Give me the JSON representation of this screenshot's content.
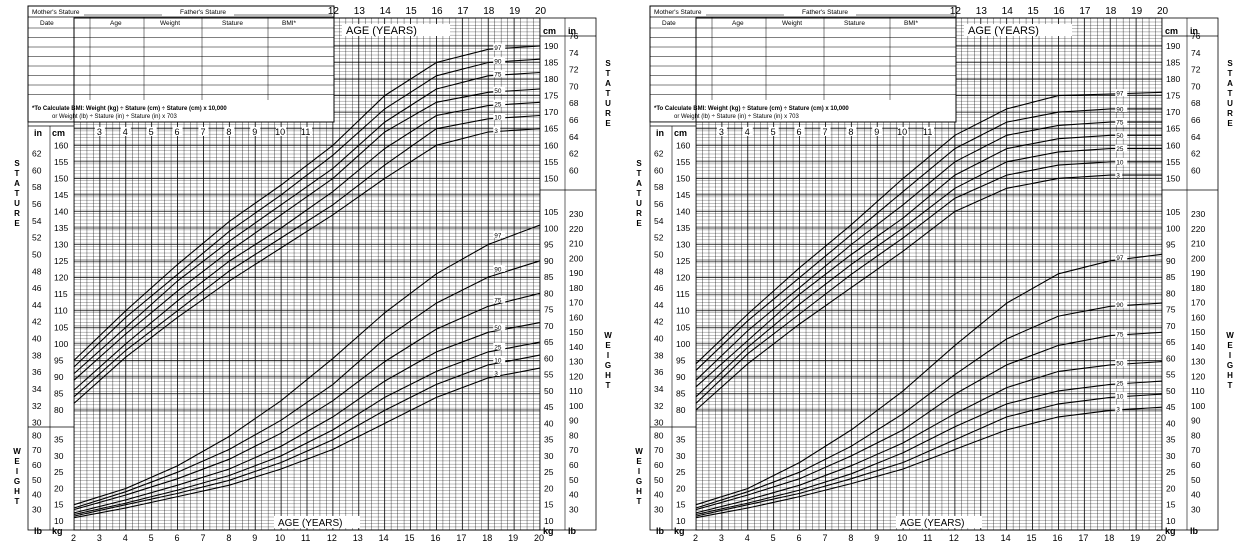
{
  "charts": [
    {
      "id": "boys",
      "header": {
        "mothers_stature": "Mother's Stature",
        "fathers_stature": "Father's Stature",
        "columns": [
          "Date",
          "Age",
          "Weight",
          "Stature",
          "BMI*"
        ],
        "bmi_note_1": "*To Calculate BMI: Weight (kg) ÷ Stature (cm) ÷ Stature (cm) x 10,000",
        "bmi_note_2": "or Weight (lb) ÷ Stature (in) ÷ Stature (in) x 703"
      },
      "labels": {
        "age_top": "AGE (YEARS)",
        "age_bottom": "AGE (YEARS)",
        "stature_vertical": "STATURE",
        "weight_vertical": "WEIGHT",
        "unit_in": "in",
        "unit_cm": "cm",
        "unit_lb": "lb",
        "unit_kg": "kg"
      }
    },
    {
      "id": "girls",
      "header": {
        "mothers_stature": "Mother's Stature",
        "fathers_stature": "Father's Stature",
        "columns": [
          "Date",
          "Age",
          "Weight",
          "Stature",
          "BMI*"
        ],
        "bmi_note_1": "*To Calculate BMI: Weight (kg) ÷ Stature (cm) ÷ Stature (cm) x 10,000",
        "bmi_note_2": "or Weight (lb) ÷ Stature (in) ÷ Stature (in) x 703"
      },
      "labels": {
        "age_top": "AGE (YEARS)",
        "age_bottom": "AGE (YEARS)",
        "stature_vertical": "STATURE",
        "weight_vertical": "WEIGHT",
        "unit_in": "in",
        "unit_cm": "cm",
        "unit_lb": "lb",
        "unit_kg": "kg"
      }
    }
  ],
  "chart_data": [
    {
      "type": "line",
      "chart": "boys",
      "xlabel": "AGE (YEARS)",
      "xlim": [
        2,
        20
      ],
      "x_ticks_top": [
        12,
        13,
        14,
        15,
        16,
        17,
        18,
        19,
        20
      ],
      "x_ticks_inner": [
        3,
        4,
        5,
        6,
        7,
        8,
        9,
        10,
        11
      ],
      "x_ticks_bottom": [
        2,
        3,
        4,
        5,
        6,
        7,
        8,
        9,
        10,
        11,
        12,
        13,
        14,
        15,
        16,
        17,
        18,
        19,
        20
      ],
      "stature_cm_left_ticks": [
        80,
        85,
        90,
        95,
        100,
        105,
        110,
        115,
        120,
        125,
        130,
        135,
        140,
        145,
        150,
        155,
        160
      ],
      "stature_in_left_ticks": [
        30,
        32,
        34,
        36,
        38,
        40,
        42,
        44,
        46,
        48,
        50,
        52,
        54,
        56,
        58,
        60,
        62
      ],
      "stature_cm_right_ticks": [
        150,
        155,
        160,
        165,
        170,
        175,
        180,
        185,
        190
      ],
      "stature_in_right_ticks": [
        60,
        62,
        64,
        66,
        68,
        70,
        72,
        74,
        76
      ],
      "weight_kg_left_ticks": [
        10,
        15,
        20,
        25,
        30,
        35
      ],
      "weight_lb_left_ticks": [
        30,
        40,
        50,
        60,
        70,
        80
      ],
      "weight_kg_right_ticks": [
        10,
        15,
        20,
        25,
        30,
        35,
        40,
        45,
        50,
        55,
        60,
        65,
        70,
        75,
        80,
        85,
        90,
        95,
        100,
        105
      ],
      "weight_lb_right_ticks": [
        30,
        40,
        50,
        60,
        70,
        80,
        90,
        100,
        110,
        120,
        130,
        140,
        150,
        160,
        170,
        180,
        190,
        200,
        210,
        220,
        230
      ],
      "stature_series": [
        {
          "name": "97",
          "x": [
            2,
            4,
            6,
            8,
            10,
            12,
            14,
            16,
            18,
            20
          ],
          "y": [
            95,
            110,
            124,
            137,
            148,
            160,
            175,
            185,
            189,
            190
          ]
        },
        {
          "name": "90",
          "x": [
            2,
            4,
            6,
            8,
            10,
            12,
            14,
            16,
            18,
            20
          ],
          "y": [
            93,
            108,
            121,
            134,
            145,
            157,
            171,
            181,
            185,
            186
          ]
        },
        {
          "name": "75",
          "x": [
            2,
            4,
            6,
            8,
            10,
            12,
            14,
            16,
            18,
            20
          ],
          "y": [
            91,
            105,
            119,
            131,
            142,
            153,
            167,
            177,
            181,
            182
          ]
        },
        {
          "name": "50",
          "x": [
            2,
            4,
            6,
            8,
            10,
            12,
            14,
            16,
            18,
            20
          ],
          "y": [
            89,
            103,
            116,
            128,
            139,
            150,
            164,
            173,
            176,
            177
          ]
        },
        {
          "name": "25",
          "x": [
            2,
            4,
            6,
            8,
            10,
            12,
            14,
            16,
            18,
            20
          ],
          "y": [
            86,
            100,
            113,
            125,
            135,
            146,
            159,
            169,
            172,
            173
          ]
        },
        {
          "name": "10",
          "x": [
            2,
            4,
            6,
            8,
            10,
            12,
            14,
            16,
            18,
            20
          ],
          "y": [
            84,
            98,
            110,
            122,
            132,
            142,
            154,
            165,
            168,
            169
          ]
        },
        {
          "name": "3",
          "x": [
            2,
            4,
            6,
            8,
            10,
            12,
            14,
            16,
            18,
            20
          ],
          "y": [
            82,
            96,
            108,
            119,
            129,
            139,
            150,
            160,
            164,
            165
          ]
        }
      ],
      "weight_series": [
        {
          "name": "97",
          "x": [
            2,
            4,
            6,
            8,
            10,
            12,
            14,
            16,
            18,
            20
          ],
          "y": [
            15,
            20,
            27,
            36,
            47,
            60,
            74,
            86,
            95,
            101
          ]
        },
        {
          "name": "90",
          "x": [
            2,
            4,
            6,
            8,
            10,
            12,
            14,
            16,
            18,
            20
          ],
          "y": [
            14,
            19,
            25,
            32,
            41,
            52,
            66,
            77,
            85,
            90
          ]
        },
        {
          "name": "75",
          "x": [
            2,
            4,
            6,
            8,
            10,
            12,
            14,
            16,
            18,
            20
          ],
          "y": [
            13.5,
            18,
            23,
            29,
            37,
            47,
            59,
            69,
            76,
            80
          ]
        },
        {
          "name": "50",
          "x": [
            2,
            4,
            6,
            8,
            10,
            12,
            14,
            16,
            18,
            20
          ],
          "y": [
            12.5,
            16.5,
            21,
            26,
            33,
            42,
            53,
            62,
            68,
            71
          ]
        },
        {
          "name": "25",
          "x": [
            2,
            4,
            6,
            8,
            10,
            12,
            14,
            16,
            18,
            20
          ],
          "y": [
            12,
            15.5,
            19.5,
            24,
            30,
            38,
            48,
            56,
            62,
            65
          ]
        },
        {
          "name": "10",
          "x": [
            2,
            4,
            6,
            8,
            10,
            12,
            14,
            16,
            18,
            20
          ],
          "y": [
            11.5,
            15,
            18.5,
            22.5,
            28,
            35,
            44,
            52,
            58,
            61
          ]
        },
        {
          "name": "3",
          "x": [
            2,
            4,
            6,
            8,
            10,
            12,
            14,
            16,
            18,
            20
          ],
          "y": [
            11,
            14,
            17.5,
            21,
            26,
            32,
            40,
            48,
            54,
            57
          ]
        }
      ]
    },
    {
      "type": "line",
      "chart": "girls",
      "xlabel": "AGE (YEARS)",
      "xlim": [
        2,
        20
      ],
      "x_ticks_top": [
        12,
        13,
        14,
        15,
        16,
        17,
        18,
        19,
        20
      ],
      "x_ticks_inner": [
        3,
        4,
        5,
        6,
        7,
        8,
        9,
        10,
        11
      ],
      "x_ticks_bottom": [
        2,
        3,
        4,
        5,
        6,
        7,
        8,
        9,
        10,
        11,
        12,
        13,
        14,
        15,
        16,
        17,
        18,
        19,
        20
      ],
      "stature_cm_left_ticks": [
        80,
        85,
        90,
        95,
        100,
        105,
        110,
        115,
        120,
        125,
        130,
        135,
        140,
        145,
        150,
        155,
        160
      ],
      "stature_in_left_ticks": [
        30,
        32,
        34,
        36,
        38,
        40,
        42,
        44,
        46,
        48,
        50,
        52,
        54,
        56,
        58,
        60,
        62
      ],
      "stature_cm_right_ticks": [
        150,
        155,
        160,
        165,
        170,
        175,
        180,
        185,
        190
      ],
      "stature_in_right_ticks": [
        60,
        62,
        64,
        66,
        68,
        70,
        72,
        74,
        76
      ],
      "weight_kg_left_ticks": [
        10,
        15,
        20,
        25,
        30,
        35
      ],
      "weight_lb_left_ticks": [
        30,
        40,
        50,
        60,
        70,
        80
      ],
      "weight_kg_right_ticks": [
        10,
        15,
        20,
        25,
        30,
        35,
        40,
        45,
        50,
        55,
        60,
        65,
        70,
        75,
        80,
        85,
        90,
        95,
        100,
        105
      ],
      "weight_lb_right_ticks": [
        30,
        40,
        50,
        60,
        70,
        80,
        90,
        100,
        110,
        120,
        130,
        140,
        150,
        160,
        170,
        180,
        190,
        200,
        210,
        220,
        230
      ],
      "stature_series": [
        {
          "name": "97",
          "x": [
            2,
            4,
            6,
            8,
            10,
            12,
            14,
            16,
            18,
            20
          ],
          "y": [
            94,
            109,
            123,
            136,
            150,
            163,
            171,
            175,
            175.5,
            176
          ]
        },
        {
          "name": "90",
          "x": [
            2,
            4,
            6,
            8,
            10,
            12,
            14,
            16,
            18,
            20
          ],
          "y": [
            92,
            107,
            120,
            133,
            146,
            159,
            167,
            170,
            171,
            171
          ]
        },
        {
          "name": "75",
          "x": [
            2,
            4,
            6,
            8,
            10,
            12,
            14,
            16,
            18,
            20
          ],
          "y": [
            89,
            104,
            117,
            130,
            142,
            155,
            163,
            166,
            167,
            167
          ]
        },
        {
          "name": "50",
          "x": [
            2,
            4,
            6,
            8,
            10,
            12,
            14,
            16,
            18,
            20
          ],
          "y": [
            87,
            101,
            115,
            127,
            138,
            151,
            159,
            162,
            163,
            163
          ]
        },
        {
          "name": "25",
          "x": [
            2,
            4,
            6,
            8,
            10,
            12,
            14,
            16,
            18,
            20
          ],
          "y": [
            84,
            99,
            112,
            124,
            135,
            147,
            155,
            158,
            159,
            159
          ]
        },
        {
          "name": "10",
          "x": [
            2,
            4,
            6,
            8,
            10,
            12,
            14,
            16,
            18,
            20
          ],
          "y": [
            82,
            97,
            109,
            121,
            132,
            144,
            151,
            154,
            155,
            155
          ]
        },
        {
          "name": "3",
          "x": [
            2,
            4,
            6,
            8,
            10,
            12,
            14,
            16,
            18,
            20
          ],
          "y": [
            80,
            94,
            106,
            117,
            128,
            140,
            147,
            150,
            151,
            151
          ]
        }
      ],
      "weight_series": [
        {
          "name": "97",
          "x": [
            2,
            4,
            6,
            8,
            10,
            12,
            14,
            16,
            18,
            20
          ],
          "y": [
            15,
            20,
            28,
            38,
            50,
            64,
            77,
            86,
            90,
            92
          ]
        },
        {
          "name": "90",
          "x": [
            2,
            4,
            6,
            8,
            10,
            12,
            14,
            16,
            18,
            20
          ],
          "y": [
            14,
            19,
            25,
            33,
            43,
            55,
            66,
            73,
            76,
            77
          ]
        },
        {
          "name": "75",
          "x": [
            2,
            4,
            6,
            8,
            10,
            12,
            14,
            16,
            18,
            20
          ],
          "y": [
            13.5,
            18,
            23,
            30,
            38,
            49,
            58,
            64,
            67,
            68
          ]
        },
        {
          "name": "50",
          "x": [
            2,
            4,
            6,
            8,
            10,
            12,
            14,
            16,
            18,
            20
          ],
          "y": [
            12.5,
            16.5,
            21,
            27,
            34,
            43,
            51,
            56,
            58,
            59
          ]
        },
        {
          "name": "25",
          "x": [
            2,
            4,
            6,
            8,
            10,
            12,
            14,
            16,
            18,
            20
          ],
          "y": [
            12,
            15.5,
            19.5,
            24.5,
            31,
            39,
            46,
            50,
            52,
            53
          ]
        },
        {
          "name": "10",
          "x": [
            2,
            4,
            6,
            8,
            10,
            12,
            14,
            16,
            18,
            20
          ],
          "y": [
            11.5,
            15,
            18.5,
            23,
            28,
            35,
            42,
            46,
            48,
            49
          ]
        },
        {
          "name": "3",
          "x": [
            2,
            4,
            6,
            8,
            10,
            12,
            14,
            16,
            18,
            20
          ],
          "y": [
            11,
            14,
            17.5,
            21.5,
            26,
            32,
            38,
            42,
            44,
            45
          ]
        }
      ]
    }
  ]
}
